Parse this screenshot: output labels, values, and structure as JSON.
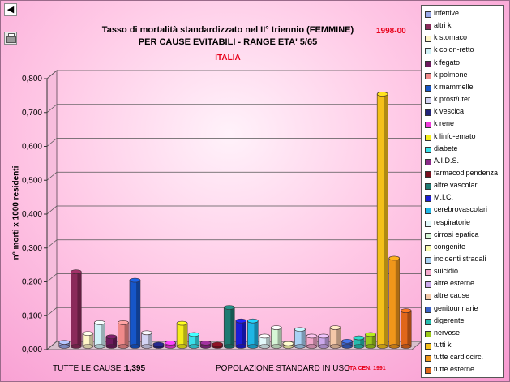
{
  "toolbar": {
    "back_glyph": "◀",
    "print_icon": "printer-icon"
  },
  "header": {
    "title_line1": "Tasso di mortalità standardizzato nel II° triennio (FEMMINE)",
    "title_line2": "PER CAUSE EVITABILI - RANGE ETA' 5/65",
    "region": "ITALIA",
    "period": "1998-00"
  },
  "footer": {
    "all_causes_label": "TUTTE LE CAUSE :",
    "all_causes_value": "1,395",
    "population_label": "POPOLAZIONE STANDARD IN USO :",
    "population_value": "ITA CEN. 1991"
  },
  "colors": {
    "accent": "#e8001a",
    "background": "#f9b3db"
  },
  "chart_data": {
    "type": "bar",
    "ylabel": "n° morti x 1000 residenti",
    "ylim": [
      0,
      0.8
    ],
    "yticks": [
      "0,000",
      "0,100",
      "0,200",
      "0,300",
      "0,400",
      "0,500",
      "0,600",
      "0,700",
      "0,800"
    ],
    "grid": true,
    "legend_position": "right",
    "series": [
      {
        "name": "infettive",
        "value": 0.012,
        "color": "#9aa9e8"
      },
      {
        "name": "altri k",
        "value": 0.22,
        "color": "#8a2a5a"
      },
      {
        "name": "k stomaco",
        "value": 0.038,
        "color": "#fff6c8"
      },
      {
        "name": "k colon-retto",
        "value": 0.07,
        "color": "#d2f2f8"
      },
      {
        "name": "k fegato",
        "value": 0.028,
        "color": "#6e1a5e"
      },
      {
        "name": "k polmone",
        "value": 0.07,
        "color": "#f08a8a"
      },
      {
        "name": "k mammelle",
        "value": 0.195,
        "color": "#1656c8"
      },
      {
        "name": "k prost/uter",
        "value": 0.04,
        "color": "#d4d4f4"
      },
      {
        "name": "k vescica",
        "value": 0.006,
        "color": "#22227a"
      },
      {
        "name": "k rene",
        "value": 0.01,
        "color": "#f03adc"
      },
      {
        "name": "k linfo-emato",
        "value": 0.068,
        "color": "#f4ee1a"
      },
      {
        "name": "diabete",
        "value": 0.035,
        "color": "#3ae0ea"
      },
      {
        "name": "A.I.D.S.",
        "value": 0.01,
        "color": "#8a2a88"
      },
      {
        "name": "farmacodipendenza",
        "value": 0.006,
        "color": "#7a1020"
      },
      {
        "name": "altre vascolari",
        "value": 0.115,
        "color": "#1e7a72"
      },
      {
        "name": "M.I.C.",
        "value": 0.075,
        "color": "#1c1cd8"
      },
      {
        "name": "cerebrovascolari",
        "value": 0.075,
        "color": "#1eb6e6"
      },
      {
        "name": "respiratorie",
        "value": 0.03,
        "color": "#e2f8fa"
      },
      {
        "name": "cirrosi epatica",
        "value": 0.055,
        "color": "#d6f6d6"
      },
      {
        "name": "congenite",
        "value": 0.008,
        "color": "#fafab0"
      },
      {
        "name": "incidenti stradali",
        "value": 0.05,
        "color": "#a8d2f4"
      },
      {
        "name": "suicidio",
        "value": 0.03,
        "color": "#f4a8cc"
      },
      {
        "name": "altre esterne",
        "value": 0.03,
        "color": "#cca8ec"
      },
      {
        "name": "altre cause",
        "value": 0.055,
        "color": "#f4c8a8"
      },
      {
        "name": "genitourinarie",
        "value": 0.015,
        "color": "#3a62c6"
      },
      {
        "name": "digerente",
        "value": 0.025,
        "color": "#26bcae"
      },
      {
        "name": "nervose",
        "value": 0.035,
        "color": "#9ac81a"
      },
      {
        "name": "tutti k",
        "value": 0.745,
        "color": "#f4c01a"
      },
      {
        "name": "tutte cardiocirc.",
        "value": 0.26,
        "color": "#f0961a"
      },
      {
        "name": "tutte esterne",
        "value": 0.105,
        "color": "#e0661a"
      }
    ]
  }
}
